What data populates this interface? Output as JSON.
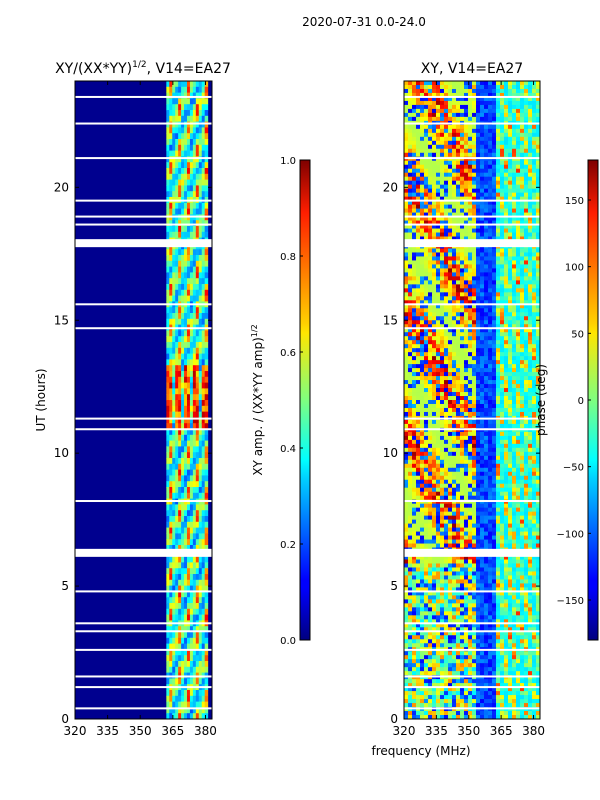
{
  "figure": {
    "suptitle": "2020-07-31 0.0-24.0",
    "shared_xlabel": "frequency (MHz)"
  },
  "chart_data": [
    {
      "type": "heatmap",
      "title_prefix": "XY/(XX*YY)",
      "title_exponent": "1/2",
      "title_suffix": ", V14=EA27",
      "xlabel": "",
      "ylabel": "UT (hours)",
      "xlim": [
        320,
        383
      ],
      "ylim": [
        0,
        24
      ],
      "xticks": [
        320,
        335,
        350,
        365,
        380
      ],
      "yticks": [
        0,
        5,
        10,
        15,
        20
      ],
      "colormap": "jet",
      "colorbar": {
        "label_prefix": "XY amp. / (XX*YY amp)",
        "label_exponent": "1/2",
        "range": [
          0.0,
          1.0
        ],
        "ticks": [
          "0.0",
          "0.2",
          "0.4",
          "0.6",
          "0.8",
          "1.0"
        ]
      },
      "flagged_rows_hours": [
        6.2,
        6.3,
        17.9,
        18.0,
        23.4
      ],
      "active_band_mhz": [
        362,
        381
      ]
    },
    {
      "type": "heatmap",
      "title": "XY, V14=EA27",
      "xlabel": "frequency (MHz)",
      "ylabel": "",
      "xlim": [
        320,
        383
      ],
      "ylim": [
        0,
        24
      ],
      "xticks": [
        320,
        335,
        350,
        365,
        380
      ],
      "yticks": [
        0,
        5,
        10,
        15,
        20
      ],
      "colormap": "jet",
      "colorbar": {
        "label": "phase (deg)",
        "range": [
          -180,
          180
        ],
        "ticks": [
          "-150",
          "-100",
          "-50",
          "0",
          "50",
          "100",
          "150"
        ]
      },
      "flagged_rows_hours": [
        6.2,
        6.3,
        17.9,
        18.0
      ]
    }
  ]
}
